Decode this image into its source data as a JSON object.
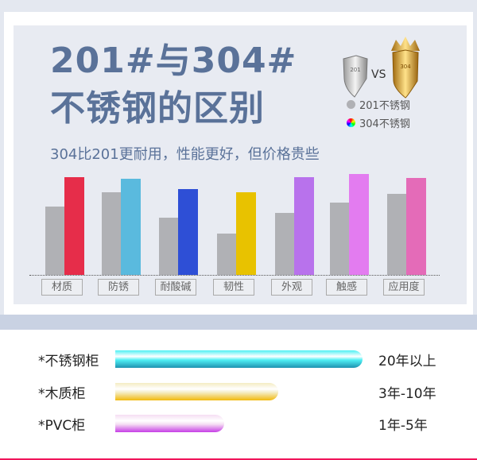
{
  "header": {
    "title_line1": "201#与304#",
    "title_line2": "不锈钢的区别",
    "subtitle": "304比201更耐用，性能更好，但价格贵些",
    "vs": "VS",
    "shield_201_text": "201",
    "shield_304_text": "304"
  },
  "chart_data": {
    "type": "bar",
    "title": "",
    "categories": [
      "材质",
      "防锈",
      "耐酸碱",
      "韧性",
      "外观",
      "触感",
      "应用度"
    ],
    "series": [
      {
        "name": "201不锈钢",
        "color": "#b0b1b5",
        "values": [
          86,
          104,
          72,
          52,
          78,
          91,
          102
        ]
      },
      {
        "name": "304不锈钢",
        "colors": [
          "#e62d4a",
          "#5abade",
          "#2e4fd6",
          "#e8c200",
          "#b872ec",
          "#e37cf0",
          "#e46bb8"
        ],
        "values": [
          123,
          121,
          108,
          104,
          123,
          127,
          122
        ]
      }
    ],
    "legend": "top-right",
    "grid": false,
    "yaxis_shown": false
  },
  "legend": [
    {
      "label": "201不锈钢",
      "color": "#b0b1b5"
    },
    {
      "label": "304不锈钢",
      "color": "rainbow"
    }
  ],
  "lifespan": {
    "type": "bar-horizontal",
    "items": [
      {
        "label": "*不锈钢柜",
        "value": "20年以上",
        "fill": 1.0,
        "top": "#4ff0f4",
        "bottom": "#1e93b0"
      },
      {
        "label": "*木质柜",
        "value": "3年-10年",
        "fill": 0.66,
        "top": "#f4ecc2",
        "bottom": "#f2b90c"
      },
      {
        "label": "*PVC柜",
        "value": "1年-5年",
        "fill": 0.44,
        "top": "#f5def3",
        "bottom": "#c63ee6"
      }
    ]
  }
}
